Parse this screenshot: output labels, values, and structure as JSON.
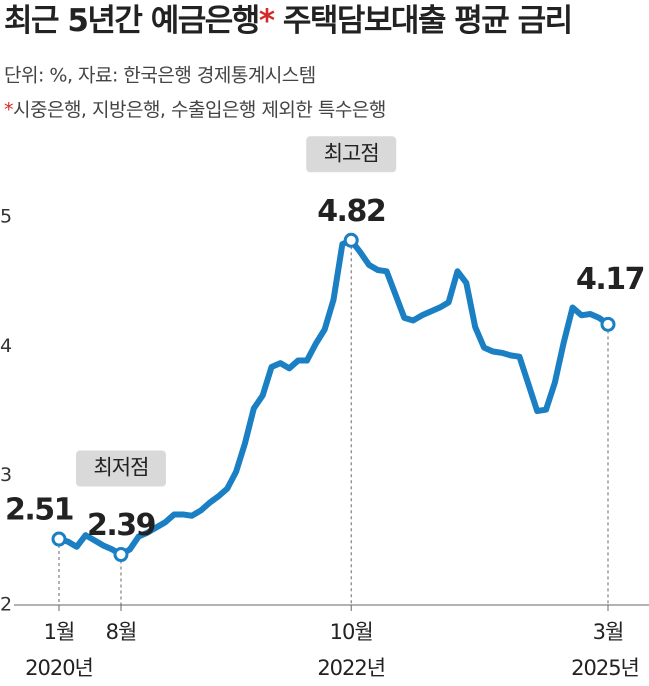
{
  "chart_data": {
    "type": "line",
    "title": [
      "최근 5년간 예금은행",
      "*",
      " 주택담보대출 평균 금리"
    ],
    "subtitle": "단위: %, 자료: 한국은행 경제통계시스템",
    "note": [
      "*",
      "시중은행, 지방은행, 수출입은행 제외한 특수은행"
    ],
    "categories": [
      "1월",
      null,
      null,
      null,
      null,
      null,
      null,
      "8월",
      null,
      null,
      null,
      null,
      null,
      null,
      null,
      null,
      null,
      null,
      null,
      null,
      null,
      null,
      null,
      null,
      null,
      null,
      null,
      null,
      null,
      null,
      null,
      null,
      null,
      "10월",
      null,
      null,
      null,
      null,
      null,
      null,
      null,
      null,
      null,
      null,
      null,
      null,
      null,
      null,
      null,
      null,
      null,
      null,
      null,
      null,
      null,
      null,
      null,
      null,
      null,
      null,
      null,
      null,
      "3월"
    ],
    "category_years": [
      "2020년",
      null,
      null,
      null,
      null,
      null,
      null,
      null,
      null,
      null,
      null,
      null,
      null,
      null,
      null,
      null,
      null,
      null,
      null,
      null,
      null,
      null,
      null,
      null,
      null,
      null,
      null,
      null,
      null,
      null,
      null,
      null,
      null,
      "2022년",
      null,
      null,
      null,
      null,
      null,
      null,
      null,
      null,
      null,
      null,
      null,
      null,
      null,
      null,
      null,
      null,
      null,
      null,
      null,
      null,
      null,
      null,
      null,
      null,
      null,
      null,
      null,
      null,
      "2025년"
    ],
    "series": [
      {
        "name": "주택담보대출 평균 금리",
        "color": "#1b7fc4",
        "values": [
          2.51,
          2.49,
          2.45,
          2.54,
          2.5,
          2.46,
          2.43,
          2.39,
          2.43,
          2.53,
          2.56,
          2.6,
          2.64,
          2.7,
          2.7,
          2.69,
          2.73,
          2.79,
          2.84,
          2.9,
          3.03,
          3.25,
          3.52,
          3.62,
          3.84,
          3.87,
          3.83,
          3.89,
          3.89,
          4.02,
          4.13,
          4.36,
          4.79,
          4.82,
          4.73,
          4.63,
          4.59,
          4.58,
          4.4,
          4.22,
          4.2,
          4.24,
          4.27,
          4.3,
          4.34,
          4.58,
          4.49,
          4.15,
          3.99,
          3.96,
          3.95,
          3.93,
          3.92,
          3.71,
          3.5,
          3.51,
          3.72,
          4.03,
          4.3,
          4.24,
          4.25,
          4.22,
          4.17
        ]
      }
    ],
    "markers": [
      0,
      7,
      33,
      62
    ],
    "annotations": [
      {
        "text": "최저점",
        "index": 7
      },
      {
        "text": "최고점",
        "index": 33
      }
    ],
    "ylim": [
      2,
      5
    ],
    "yticks": [
      2,
      3,
      4,
      5
    ]
  }
}
